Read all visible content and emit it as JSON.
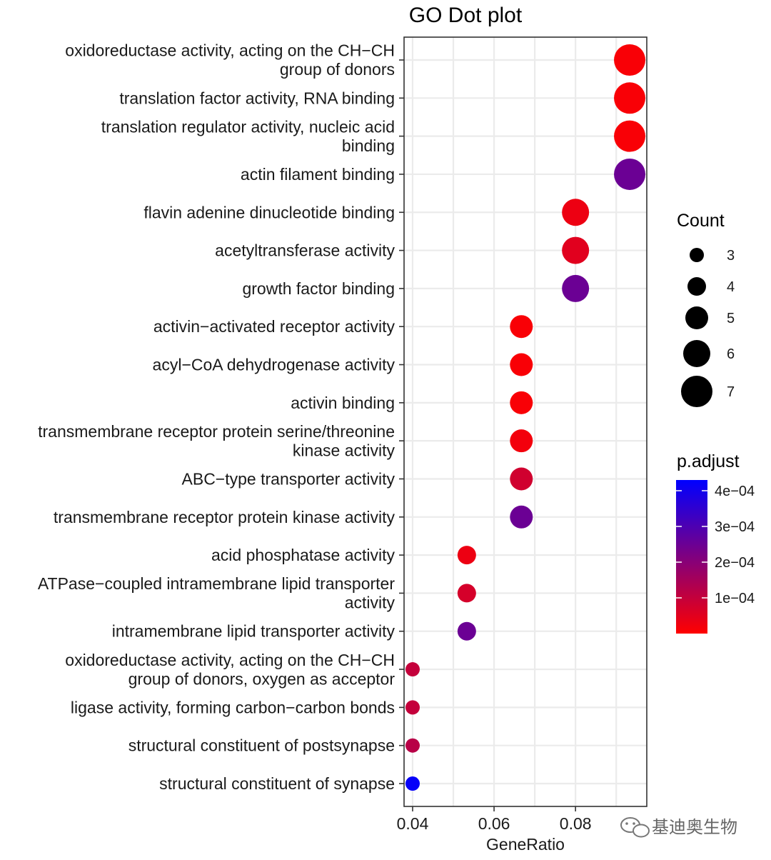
{
  "chart_data": {
    "type": "scatter",
    "title": "GO Dot plot",
    "xlabel": "GeneRatio",
    "ylabel": "",
    "xlim": [
      0.0379,
      0.0975
    ],
    "x_ticks": [
      0.04,
      0.06,
      0.08
    ],
    "x_tick_labels": [
      "0.04",
      "0.06",
      "0.08"
    ],
    "grid": true,
    "terms": [
      {
        "label": [
          "oxidoreductase activity, acting on the CH−CH",
          "group of donors"
        ],
        "gene_ratio": 0.0933,
        "count": 7,
        "p_adjust": 1e-05
      },
      {
        "label": [
          "translation factor activity, RNA binding"
        ],
        "gene_ratio": 0.0933,
        "count": 7,
        "p_adjust": 1e-05
      },
      {
        "label": [
          "translation regulator activity, nucleic acid",
          "binding"
        ],
        "gene_ratio": 0.0933,
        "count": 7,
        "p_adjust": 1e-05
      },
      {
        "label": [
          "actin filament binding"
        ],
        "gene_ratio": 0.0933,
        "count": 7,
        "p_adjust": 0.00025
      },
      {
        "label": [
          "flavin adenine dinucleotide binding"
        ],
        "gene_ratio": 0.08,
        "count": 6,
        "p_adjust": 3e-05
      },
      {
        "label": [
          "acetyltransferase activity"
        ],
        "gene_ratio": 0.08,
        "count": 6,
        "p_adjust": 5e-05
      },
      {
        "label": [
          "growth factor binding"
        ],
        "gene_ratio": 0.08,
        "count": 6,
        "p_adjust": 0.00025
      },
      {
        "label": [
          "activin−activated receptor activity"
        ],
        "gene_ratio": 0.0667,
        "count": 5,
        "p_adjust": 1e-05
      },
      {
        "label": [
          "acyl−CoA dehydrogenase activity"
        ],
        "gene_ratio": 0.0667,
        "count": 5,
        "p_adjust": 1e-05
      },
      {
        "label": [
          "activin binding"
        ],
        "gene_ratio": 0.0667,
        "count": 5,
        "p_adjust": 1e-05
      },
      {
        "label": [
          "transmembrane receptor protein serine/threonine",
          "kinase activity"
        ],
        "gene_ratio": 0.0667,
        "count": 5,
        "p_adjust": 2e-05
      },
      {
        "label": [
          "ABC−type transporter activity"
        ],
        "gene_ratio": 0.0667,
        "count": 5,
        "p_adjust": 8e-05
      },
      {
        "label": [
          "transmembrane receptor protein kinase activity"
        ],
        "gene_ratio": 0.0667,
        "count": 5,
        "p_adjust": 0.00025
      },
      {
        "label": [
          "acid phosphatase activity"
        ],
        "gene_ratio": 0.0533,
        "count": 4,
        "p_adjust": 3e-05
      },
      {
        "label": [
          "ATPase−coupled intramembrane lipid transporter",
          "activity"
        ],
        "gene_ratio": 0.0533,
        "count": 4,
        "p_adjust": 7e-05
      },
      {
        "label": [
          "intramembrane lipid transporter activity"
        ],
        "gene_ratio": 0.0533,
        "count": 4,
        "p_adjust": 0.00025
      },
      {
        "label": [
          "oxidoreductase activity, acting on the CH−CH",
          "group of donors, oxygen as acceptor"
        ],
        "gene_ratio": 0.04,
        "count": 3,
        "p_adjust": 0.0001
      },
      {
        "label": [
          "ligase activity, forming carbon−carbon bonds"
        ],
        "gene_ratio": 0.04,
        "count": 3,
        "p_adjust": 0.0001
      },
      {
        "label": [
          "structural constituent of postsynapse"
        ],
        "gene_ratio": 0.04,
        "count": 3,
        "p_adjust": 0.00012
      },
      {
        "label": [
          "structural constituent of synapse"
        ],
        "gene_ratio": 0.04,
        "count": 3,
        "p_adjust": 0.00042
      }
    ],
    "legend_size": {
      "title": "Count",
      "counts": [
        3,
        4,
        5,
        6,
        7
      ],
      "labels": [
        "3",
        "4",
        "5",
        "6",
        "7"
      ]
    },
    "legend_color": {
      "title": "p.adjust",
      "min": 0,
      "max": 0.00043,
      "low_color": "#ff0000",
      "high_color": "#0000ff",
      "ticks": [
        0.0004,
        0.0003,
        0.0002,
        0.0001
      ],
      "tick_labels": [
        "4e−04",
        "3e−04",
        "2e−04",
        "1e−04"
      ]
    }
  },
  "watermark": {
    "icon": "wechat-icon",
    "text": "基迪奥生物"
  }
}
